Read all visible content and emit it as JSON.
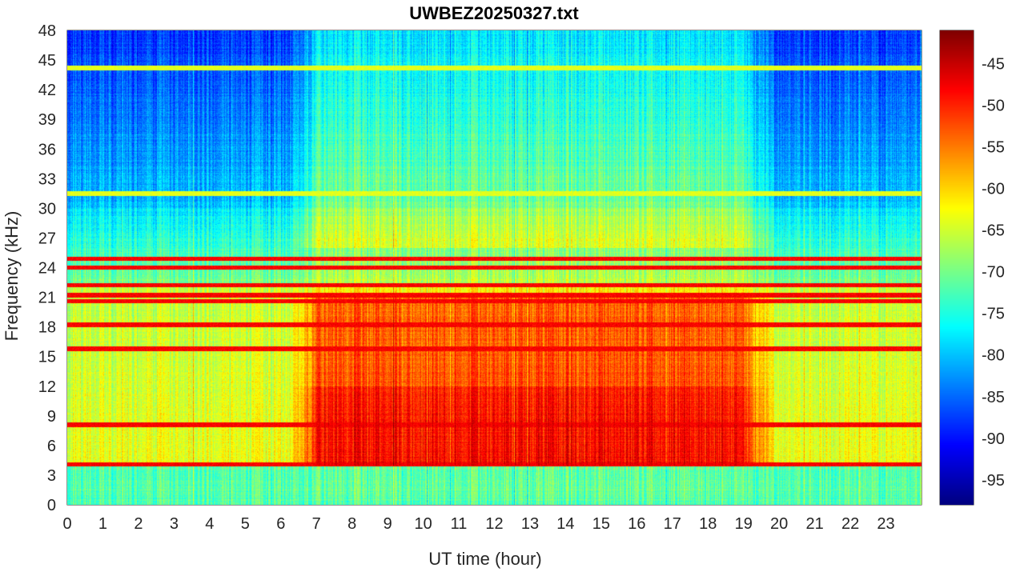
{
  "chart_data": {
    "type": "heatmap",
    "title": "UWBEZ20250327.txt",
    "xlabel": "UT time (hour)",
    "ylabel": "Frequency (kHz)",
    "xlim": [
      0,
      24
    ],
    "ylim": [
      0,
      48
    ],
    "xticks": [
      0,
      1,
      2,
      3,
      4,
      5,
      6,
      7,
      8,
      9,
      10,
      11,
      12,
      13,
      14,
      15,
      16,
      17,
      18,
      19,
      20,
      21,
      22,
      23
    ],
    "yticks": [
      0,
      3,
      6,
      9,
      12,
      15,
      18,
      21,
      24,
      27,
      30,
      33,
      36,
      39,
      42,
      45,
      48
    ],
    "colorbar": {
      "colormap": "jet",
      "range": [
        -98,
        -41
      ],
      "ticks": [
        -45,
        -50,
        -55,
        -60,
        -65,
        -70,
        -75,
        -80,
        -85,
        -90,
        -95
      ]
    },
    "features": {
      "narrowband_lines_khz": [
        44.2,
        31.5,
        24.9,
        24.0,
        22.2,
        21.2,
        20.6,
        18.2,
        15.8,
        8.1,
        4.1
      ],
      "daytime_enhancement_hours": [
        6.8,
        19.2
      ],
      "daytime_enhancement_band_khz": [
        4,
        18
      ],
      "background_noise_floor_db": [
        -98,
        -65
      ],
      "peak_level_db": -43
    }
  }
}
